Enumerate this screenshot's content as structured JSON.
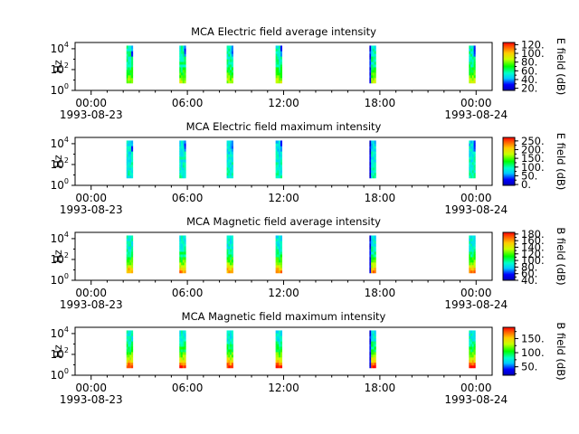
{
  "chart_data": [
    {
      "type": "heatmap",
      "title": "MCA  Electric field average intensity",
      "ylabel": "Hz",
      "colorbar_label": "E field (dB)",
      "colorbar_ticks": [
        "20.",
        "40.",
        "60.",
        "80.",
        "100.",
        "120."
      ],
      "colorbar_range": [
        15,
        125
      ],
      "data_range": [
        20,
        120
      ],
      "field": "E",
      "stat": "avg"
    },
    {
      "type": "heatmap",
      "title": "MCA  Electric field maximum intensity",
      "ylabel": "Hz",
      "colorbar_label": "E field (dB)",
      "colorbar_ticks": [
        "0.",
        "50.",
        "100.",
        "150.",
        "200.",
        "250."
      ],
      "colorbar_range": [
        -5,
        270
      ],
      "data_range": [
        0,
        250
      ],
      "field": "E",
      "stat": "max"
    },
    {
      "type": "heatmap",
      "title": "MCA  Magnetic field average intensity",
      "ylabel": "Hz",
      "colorbar_label": "B field (dB)",
      "colorbar_ticks": [
        "40.",
        "60.",
        "80.",
        "100.",
        "120.",
        "140.",
        "160.",
        "180."
      ],
      "colorbar_range": [
        40,
        185
      ],
      "data_range": [
        40,
        180
      ],
      "field": "B",
      "stat": "avg"
    },
    {
      "type": "heatmap",
      "title": "MCA  Magnetic field maximum intensity",
      "ylabel": "Hz",
      "colorbar_label": "B field (dB)",
      "colorbar_ticks": [
        "50.",
        "100.",
        "150."
      ],
      "colorbar_range": [
        20,
        190
      ],
      "data_range": [
        20,
        190
      ],
      "field": "B",
      "stat": "max"
    }
  ],
  "shared_axes": {
    "x_ticks": [
      "00:00",
      "06:00",
      "12:00",
      "18:00",
      "00:00"
    ],
    "x_dates": [
      "1993-08-23",
      "",
      "",
      "",
      "1993-08-24"
    ],
    "x_range_hours": [
      -1,
      25
    ],
    "y_tick_bases": [
      "10",
      "10",
      "10"
    ],
    "y_tick_exponents": [
      "0",
      "2",
      "4"
    ],
    "y_range_log10": [
      0,
      4.6
    ],
    "frequency_bands_log10": [
      0.7,
      4.3
    ]
  },
  "data_segments_hours": [
    {
      "start": 2.2,
      "end": 2.6
    },
    {
      "start": 5.5,
      "end": 5.9
    },
    {
      "start": 8.45,
      "end": 8.85
    },
    {
      "start": 11.5,
      "end": 11.9
    },
    {
      "start": 17.35,
      "end": 17.75
    },
    {
      "start": 23.55,
      "end": 23.95
    }
  ]
}
